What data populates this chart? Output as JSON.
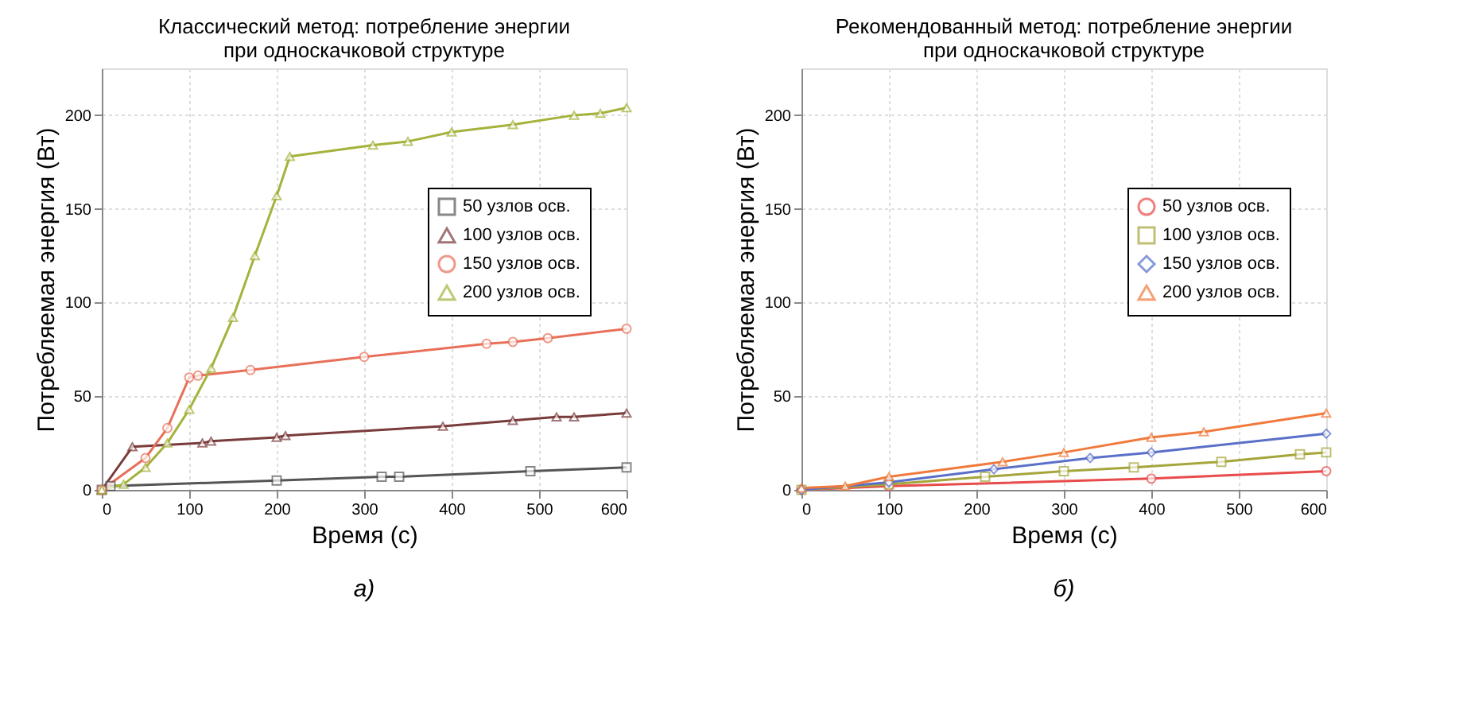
{
  "chart_data": [
    {
      "type": "line",
      "title": "Классический метод: потребление энергии\nпри односкачковой структуре",
      "xlabel": "Время (с)",
      "ylabel": "Потребляемая энергия (Вт)",
      "annotations": [
        "а)"
      ],
      "xlim": [
        0,
        600
      ],
      "xticks": [
        0,
        100,
        200,
        300,
        400,
        500,
        600
      ],
      "ylim": [
        0,
        225
      ],
      "yticks": [
        0,
        50,
        100,
        150,
        200
      ],
      "grid": true,
      "legend": "right",
      "line_style": "solid",
      "series": [
        {
          "name": "50 узлов осв.",
          "color": "#555555",
          "marker": "square",
          "x": [
            0,
            10,
            200,
            320,
            340,
            490,
            600
          ],
          "values": [
            0,
            2,
            5,
            7,
            7,
            10,
            12
          ]
        },
        {
          "name": "100 узлов осв.",
          "color": "#7a3b3b",
          "marker": "triangle",
          "x": [
            0,
            35,
            115,
            125,
            200,
            210,
            390,
            470,
            520,
            540,
            600
          ],
          "values": [
            0,
            23,
            25,
            26,
            28,
            29,
            34,
            37,
            39,
            39,
            41
          ]
        },
        {
          "name": "150 узлов осв.",
          "color": "#e8705a",
          "marker": "circle",
          "x": [
            0,
            50,
            75,
            100,
            110,
            170,
            300,
            440,
            470,
            510,
            600
          ],
          "values": [
            0,
            17,
            33,
            60,
            61,
            64,
            71,
            78,
            79,
            81,
            86
          ]
        },
        {
          "name": "200 узлов осв.",
          "color": "#a5b23c",
          "marker": "triangle",
          "x": [
            0,
            25,
            50,
            75,
            100,
            125,
            150,
            175,
            200,
            215,
            310,
            350,
            400,
            470,
            540,
            570,
            600
          ],
          "values": [
            0,
            3,
            12,
            25,
            43,
            65,
            92,
            125,
            157,
            178,
            184,
            186,
            191,
            195,
            200,
            201,
            204
          ]
        }
      ]
    },
    {
      "type": "line",
      "title": "Рекомендованный метод: потребление энергии\nпри односкачковой структуре",
      "xlabel": "Время (с)",
      "ylabel": "Потребляемая энергия (Вт)",
      "annotations": [
        "б)"
      ],
      "xlim": [
        0,
        600
      ],
      "xticks": [
        0,
        100,
        200,
        300,
        400,
        500,
        600
      ],
      "ylim": [
        0,
        225
      ],
      "yticks": [
        0,
        50,
        100,
        150,
        200
      ],
      "grid": true,
      "legend": "right",
      "line_style": "solid",
      "series": [
        {
          "name": "50 узлов осв.",
          "color": "#e84b4b",
          "marker": "circle",
          "x": [
            0,
            100,
            400,
            600
          ],
          "values": [
            0,
            2,
            6,
            10
          ]
        },
        {
          "name": "100 узлов осв.",
          "color": "#a5a53c",
          "marker": "square",
          "x": [
            0,
            100,
            210,
            300,
            380,
            480,
            570,
            600
          ],
          "values": [
            0,
            3,
            7,
            10,
            12,
            15,
            19,
            20
          ]
        },
        {
          "name": "150 узлов осв.",
          "color": "#5a6fc8",
          "marker": "diamond",
          "x": [
            0,
            100,
            220,
            330,
            400,
            600
          ],
          "values": [
            0,
            4,
            11,
            17,
            20,
            30
          ]
        },
        {
          "name": "200 узлов осв.",
          "color": "#f07a3c",
          "marker": "triangle",
          "x": [
            0,
            50,
            100,
            230,
            300,
            400,
            460,
            600
          ],
          "values": [
            1,
            2,
            7,
            15,
            20,
            28,
            31,
            41
          ]
        }
      ]
    }
  ]
}
